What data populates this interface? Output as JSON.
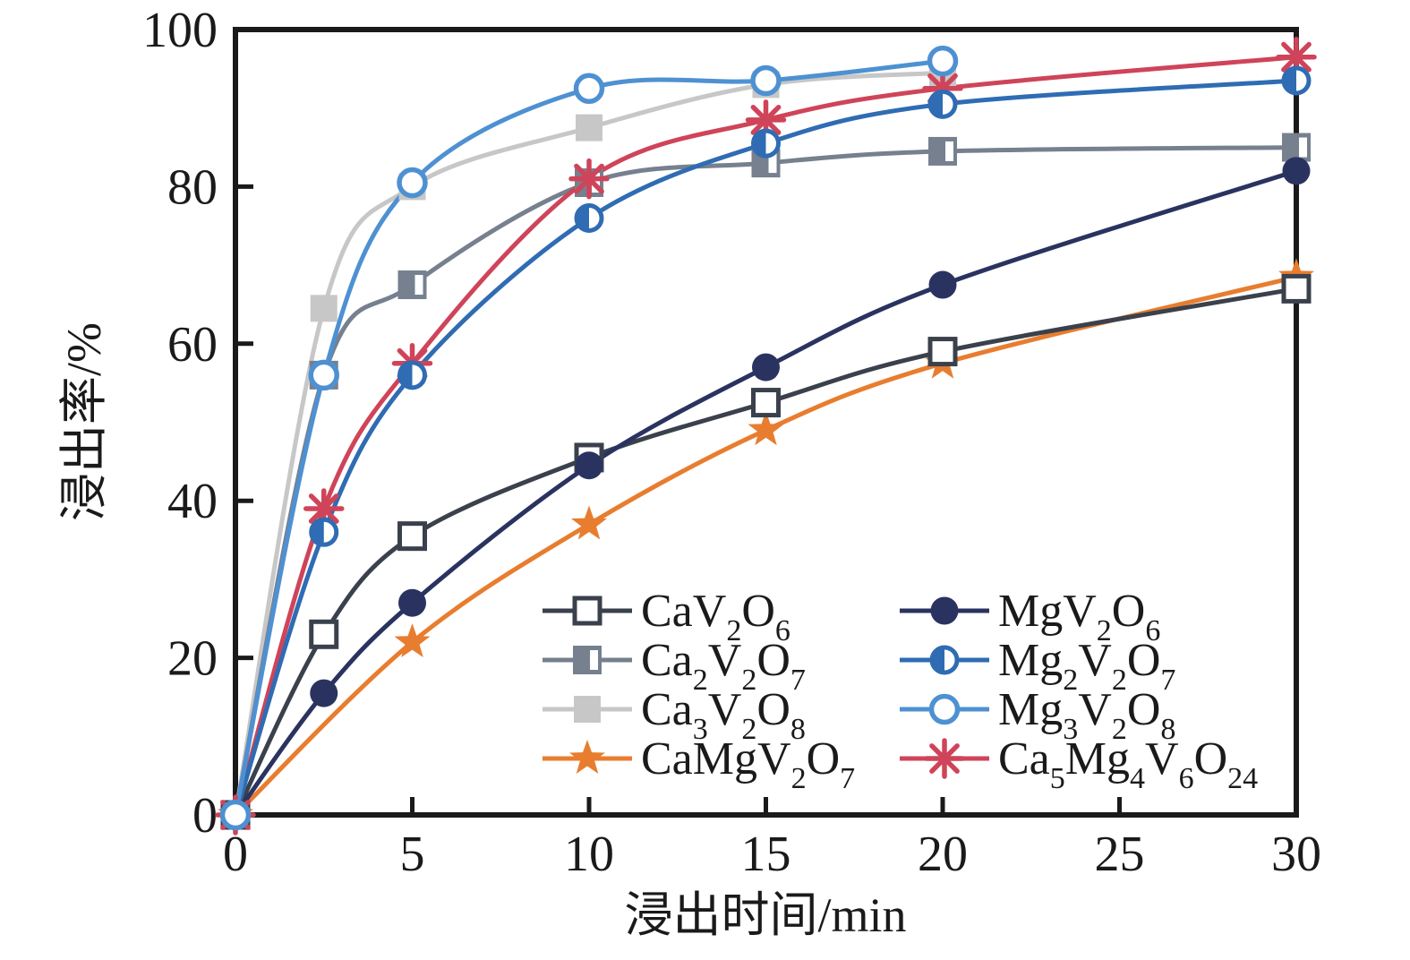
{
  "chart_data": {
    "type": "line",
    "title": "",
    "xlabel": "浸出时间/min",
    "ylabel": "浸出率/%",
    "xlim": [
      0,
      30
    ],
    "ylim": [
      0,
      100
    ],
    "xticks": [
      0,
      5,
      10,
      15,
      20,
      25,
      30
    ],
    "yticks": [
      0,
      20,
      40,
      60,
      80,
      100
    ],
    "grid": false,
    "frame_color": "#1a1a1a",
    "legend_position": "inside bottom-center, two columns",
    "draw_order": [
      2,
      1,
      3,
      0,
      4,
      7,
      5,
      6
    ],
    "series": [
      {
        "formula": "CaV_2O_6",
        "marker": "open-square",
        "color": "#3a414c",
        "x": [
          0,
          2.5,
          5,
          10,
          15,
          20,
          30
        ],
        "y": [
          0,
          23,
          35.5,
          45.5,
          52.5,
          59,
          67
        ]
      },
      {
        "formula": "Ca_2V_2O_7",
        "marker": "half-square",
        "color": "#76808e",
        "x": [
          0,
          2.5,
          5,
          10,
          15,
          20,
          30
        ],
        "y": [
          0,
          56,
          67.5,
          80.5,
          83,
          84.5,
          85
        ]
      },
      {
        "formula": "Ca_3V_2O_8",
        "marker": "filled-square",
        "color": "#c7c7c7",
        "x": [
          0,
          2.5,
          5,
          10,
          15,
          20
        ],
        "y": [
          0,
          64.5,
          80,
          87.5,
          93,
          94.5
        ]
      },
      {
        "formula": "CaMgV_2O_7",
        "marker": "star",
        "color": "#e87d2f",
        "x": [
          0,
          5,
          10,
          15,
          20,
          30
        ],
        "y": [
          0,
          22,
          37,
          49,
          57.5,
          68.5
        ]
      },
      {
        "formula": "MgV_2O_6",
        "marker": "filled-circle",
        "color": "#2a3360",
        "x": [
          0,
          2.5,
          5,
          10,
          15,
          20,
          30
        ],
        "y": [
          0,
          15.5,
          27,
          44.5,
          57,
          67.5,
          82
        ]
      },
      {
        "formula": "Mg_2V_2O_7",
        "marker": "half-circle",
        "color": "#2f6cb3",
        "x": [
          0,
          2.5,
          5,
          10,
          15,
          20,
          30
        ],
        "y": [
          0,
          36,
          56,
          76,
          85.5,
          90.5,
          93.5
        ]
      },
      {
        "formula": "Mg_3V_2O_8",
        "marker": "open-circle",
        "color": "#4e91d2",
        "x": [
          0,
          2.5,
          5,
          10,
          15,
          20
        ],
        "y": [
          0,
          56,
          80.5,
          92.5,
          93.5,
          96
        ]
      },
      {
        "formula": "Ca_5Mg_4V_6O_24",
        "marker": "asterisk",
        "color": "#cf4459",
        "x": [
          0,
          2.5,
          5,
          10,
          15,
          20,
          30
        ],
        "y": [
          0,
          39,
          57.5,
          81,
          88.5,
          92.5,
          96.5
        ]
      }
    ]
  }
}
